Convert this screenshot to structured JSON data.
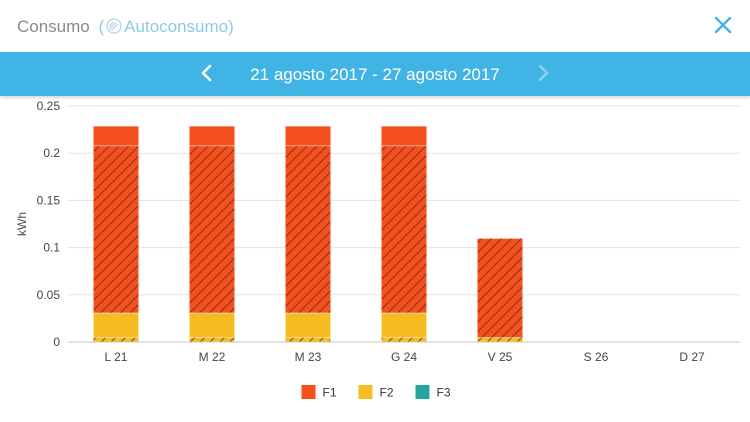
{
  "header": {
    "title": "Consumo",
    "paren_open": "(",
    "subtitle": "Autoconsumo",
    "paren_close": ")"
  },
  "date_nav": {
    "range": "21 agosto 2017 - 27 agosto 2017",
    "prev_enabled": true,
    "next_enabled": false
  },
  "colors": {
    "F1": "#f4511e",
    "F2": "#f6bd22",
    "F3": "#26a69a",
    "accent": "#41b4e6"
  },
  "chart_data": {
    "type": "bar",
    "stacked": true,
    "ylabel": "kWh",
    "ylim": [
      0,
      0.25
    ],
    "yticks": [
      0,
      0.05,
      0.1,
      0.15,
      0.2,
      0.25
    ],
    "ytick_labels": [
      "0",
      "0.05",
      "0.1",
      "0.15",
      "0.2",
      "0.25"
    ],
    "categories": [
      "L 21",
      "M 22",
      "M 23",
      "G 24",
      "V 25",
      "S 26",
      "D 27"
    ],
    "series": [
      {
        "name": "F3",
        "color": "#26a69a",
        "values": [
          0,
          0,
          0,
          0,
          0,
          0,
          0
        ]
      },
      {
        "name": "F2 (autoconsumo)",
        "color": "#f6bd22",
        "hatched": true,
        "values": [
          0.005,
          0.005,
          0.005,
          0.005,
          0.005,
          0,
          0
        ]
      },
      {
        "name": "F2",
        "color": "#f6bd22",
        "hatched": false,
        "values": [
          0.026,
          0.026,
          0.026,
          0.026,
          0,
          0,
          0
        ]
      },
      {
        "name": "F1 (autoconsumo)",
        "color": "#f4511e",
        "hatched": true,
        "values": [
          0.177,
          0.177,
          0.177,
          0.177,
          0.105,
          0,
          0
        ]
      },
      {
        "name": "F1",
        "color": "#f4511e",
        "hatched": false,
        "values": [
          0.021,
          0.021,
          0.021,
          0.021,
          0,
          0,
          0
        ]
      }
    ],
    "legend": [
      {
        "label": "F1",
        "color": "#f4511e"
      },
      {
        "label": "F2",
        "color": "#f6bd22"
      },
      {
        "label": "F3",
        "color": "#26a69a"
      }
    ],
    "legend_position": "bottom-center",
    "grid": true
  }
}
